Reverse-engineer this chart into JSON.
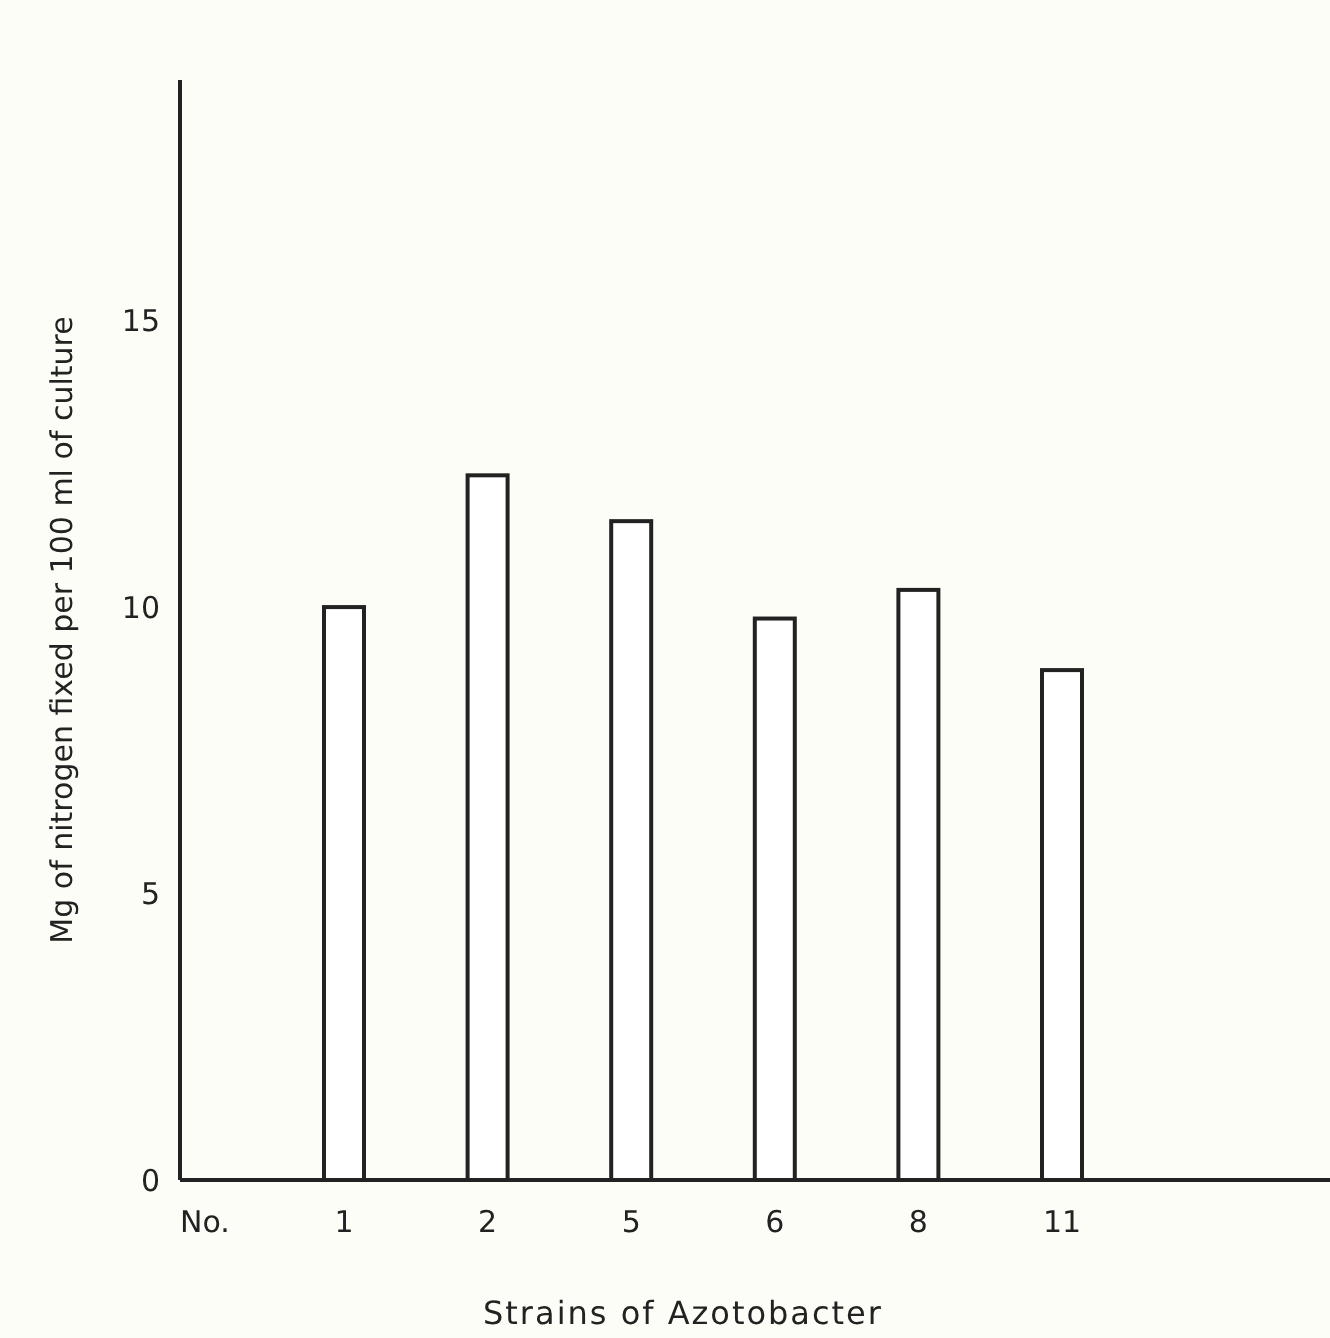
{
  "chart_data": {
    "type": "bar",
    "xlabel": "Strains of Azotobacter",
    "ylabel": "Mg of nitrogen fixed per 100 ml of culture",
    "categories": [
      "1",
      "2",
      "5",
      "6",
      "8",
      "11"
    ],
    "values": [
      10.0,
      12.3,
      11.5,
      9.8,
      10.3,
      8.9
    ],
    "color": "#ffffff",
    "ylim": [
      0,
      19.2
    ],
    "yticks": [
      0,
      5,
      10,
      15
    ],
    "annotations": [
      "No."
    ]
  }
}
